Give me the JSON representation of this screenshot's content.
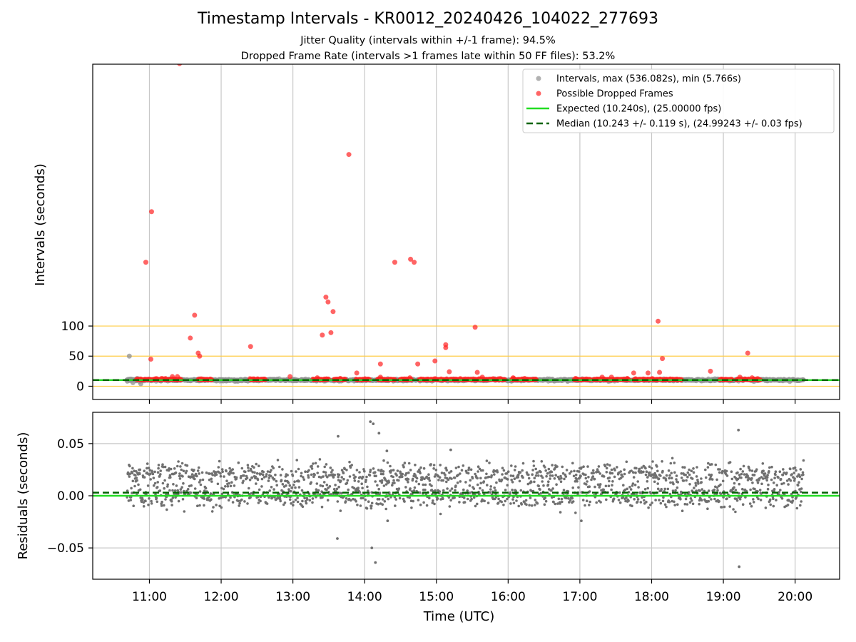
{
  "figure": {
    "title": "Timestamp Intervals - KR0012_20240426_104022_277693",
    "subtitle_1": "Jitter Quality (intervals within +/-1 frame): 94.5%",
    "subtitle_2": "Dropped Frame Rate (intervals >1 frames late within 50 FF files): 53.2%"
  },
  "colors": {
    "intervals": "#909090",
    "dropped": "#ff2222",
    "expected": "#22dd22",
    "median": "#006400",
    "reference": "#ffcc44",
    "grid": "#c8c8c8",
    "residuals": "#707070"
  },
  "chart_data": [
    {
      "type": "scatter",
      "id": "intervals",
      "ylabel": "Intervals (seconds)",
      "yticks": [
        0,
        50,
        100
      ],
      "ylim": [
        -22,
        535
      ],
      "xlim": [
        10.21,
        20.62
      ],
      "grid": "vertical",
      "reference_lines": [
        0,
        50,
        100
      ],
      "legend_position": "top-right",
      "legend": [
        "Intervals, max (536.082s), min (5.766s)",
        "Possible Dropped Frames",
        "Expected (10.240s), (25.00000 fps)",
        "Median (10.243 +/- 0.119 s), (24.99243 +/- 0.03 fps)"
      ],
      "expected": 10.24,
      "median": 10.243,
      "series": [
        {
          "name": "Possible Dropped Frames",
          "points": [
            [
              11.42,
              536
            ],
            [
              11.03,
              290
            ],
            [
              10.95,
              206
            ],
            [
              11.63,
              118
            ],
            [
              11.57,
              80
            ],
            [
              11.68,
              55
            ],
            [
              11.7,
              50
            ],
            [
              11.02,
              45
            ],
            [
              12.41,
              66
            ],
            [
              13.78,
              385
            ],
            [
              13.46,
              148
            ],
            [
              13.49,
              140
            ],
            [
              13.56,
              124
            ],
            [
              13.53,
              89
            ],
            [
              13.41,
              85
            ],
            [
              13.89,
              22
            ],
            [
              14.42,
              206
            ],
            [
              14.64,
              211
            ],
            [
              14.69,
              206
            ],
            [
              14.22,
              37
            ],
            [
              14.74,
              37
            ],
            [
              14.98,
              42
            ],
            [
              15.54,
              98
            ],
            [
              15.13,
              69
            ],
            [
              15.13,
              64
            ],
            [
              15.18,
              24
            ],
            [
              15.57,
              23
            ],
            [
              18.09,
              108
            ],
            [
              18.15,
              46
            ],
            [
              18.11,
              23
            ],
            [
              17.95,
              22
            ],
            [
              17.75,
              22
            ],
            [
              18.82,
              25
            ],
            [
              19.34,
              55
            ],
            [
              11.32,
              16
            ],
            [
              11.39,
              16
            ],
            [
              12.96,
              16
            ],
            [
              13.34,
              14
            ],
            [
              14.22,
              15
            ],
            [
              14.63,
              14
            ],
            [
              15.64,
              15
            ],
            [
              16.07,
              14
            ],
            [
              16.23,
              13
            ],
            [
              17.31,
              15
            ],
            [
              17.44,
              15
            ],
            [
              19.23,
              15
            ],
            [
              19.4,
              14
            ],
            [
              10.88,
              12
            ],
            [
              11.17,
              13
            ],
            [
              12.43,
              12
            ],
            [
              16.94,
              13
            ],
            [
              17.66,
              13
            ],
            [
              18.26,
              12
            ]
          ]
        }
      ],
      "dropped_band_segments": [
        [
          10.82,
          11.45
        ],
        [
          11.68,
          11.87
        ],
        [
          12.4,
          12.62
        ],
        [
          13.28,
          13.5
        ],
        [
          13.57,
          13.74
        ],
        [
          13.88,
          14.07
        ],
        [
          14.18,
          14.43
        ],
        [
          14.49,
          14.66
        ],
        [
          14.76,
          15.15
        ],
        [
          15.18,
          15.96
        ],
        [
          16.05,
          16.4
        ],
        [
          16.92,
          17.15
        ],
        [
          17.19,
          17.69
        ],
        [
          17.75,
          18.42
        ],
        [
          18.95,
          19.13
        ],
        [
          19.18,
          19.52
        ]
      ],
      "interval_band_range": [
        10.68,
        20.12
      ]
    },
    {
      "type": "scatter",
      "id": "residuals",
      "ylabel": "Residuals (seconds)",
      "xlabel": "Time (UTC)",
      "yticks": [
        -0.05,
        0.0,
        0.05
      ],
      "ytick_labels": [
        "−0.05",
        "0.00",
        "0.05"
      ],
      "ylim": [
        -0.08,
        0.08
      ],
      "xlim": [
        10.21,
        20.62
      ],
      "grid": "both",
      "xticks": [
        11,
        12,
        13,
        14,
        15,
        16,
        17,
        18,
        19,
        20
      ],
      "xtick_labels": [
        "11:00",
        "12:00",
        "13:00",
        "14:00",
        "15:00",
        "16:00",
        "17:00",
        "18:00",
        "19:00",
        "20:00"
      ],
      "expected": 0.0,
      "median": 0.003,
      "residual_range": [
        10.68,
        20.12
      ],
      "clusters": [
        0.0,
        0.02
      ],
      "outliers": [
        [
          14.08,
          0.071
        ],
        [
          14.12,
          0.069
        ],
        [
          14.2,
          0.06
        ],
        [
          13.63,
          0.057
        ],
        [
          14.31,
          0.043
        ],
        [
          15.2,
          0.044
        ],
        [
          19.21,
          0.063
        ],
        [
          13.62,
          -0.041
        ],
        [
          14.1,
          -0.05
        ],
        [
          14.15,
          -0.064
        ],
        [
          19.22,
          -0.068
        ],
        [
          14.32,
          -0.024
        ],
        [
          17.02,
          -0.024
        ]
      ]
    }
  ]
}
